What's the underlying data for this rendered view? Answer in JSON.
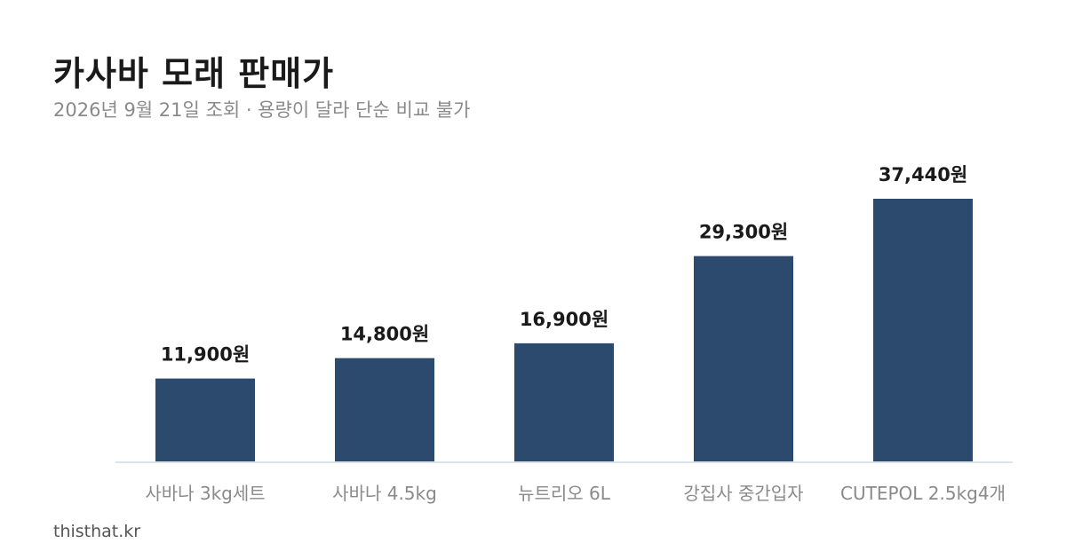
{
  "header": {
    "title": "카사바 모래 판매가",
    "subtitle": "2026년 9월 21일 조회 · 용량이 달라 단순 비교 불가"
  },
  "footer": {
    "source": "thisthat.kr"
  },
  "colors": {
    "bar": "#2c4a6e",
    "title": "#1a1a1a",
    "muted": "#8a8a8a"
  },
  "chart_data": {
    "type": "bar",
    "categories": [
      "사바나 3kg세트",
      "사바나 4.5kg",
      "뉴트리오 6L",
      "강집사 중간입자",
      "CUTEPOL 2.5kg4개"
    ],
    "values": [
      11900,
      14800,
      16900,
      29300,
      37440
    ],
    "value_labels": [
      "11,900원",
      "14,800원",
      "16,900원",
      "29,300원",
      "37,440원"
    ],
    "unit": "원",
    "ylim": [
      0,
      40000
    ],
    "grid": false,
    "legend": "none"
  }
}
